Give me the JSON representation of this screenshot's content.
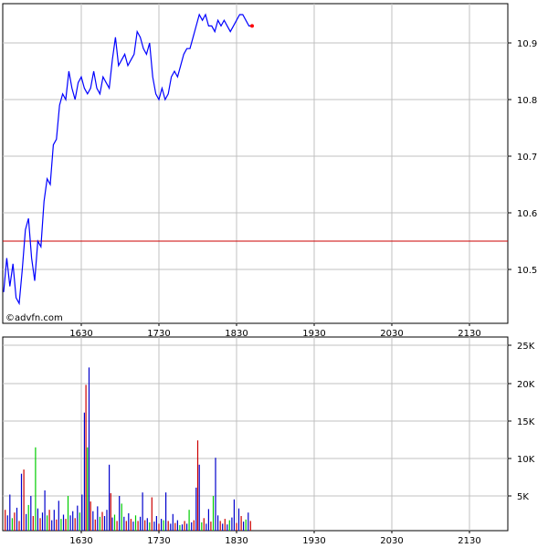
{
  "watermark": "©advfn.com",
  "colors": {
    "price_line": "#0000ff",
    "reference_line": "#cc0000",
    "last_point": "#ff0000",
    "grid": "#c0c0c0",
    "frame": "#000000",
    "vol_up": "#00cc00",
    "vol_down": "#cc0000",
    "vol_neutral": "#0000cc"
  },
  "chart_data": [
    {
      "type": "line",
      "name": "price",
      "x_ticks": [
        "1630",
        "1730",
        "1830",
        "1930",
        "2030",
        "2130"
      ],
      "y_ticks": [
        "10.5",
        "10.6",
        "10.7",
        "10.8",
        "10.9"
      ],
      "ylim": [
        10.41,
        10.98
      ],
      "xlim": [
        1530,
        2200
      ],
      "grid": true,
      "reference_line": 10.55,
      "last_point": {
        "x": 1850,
        "y": 10.93
      },
      "x": [
        1530,
        1534,
        1538,
        1542,
        1546,
        1550,
        1554,
        1558,
        1562,
        1566,
        1570,
        1574,
        1578,
        1582,
        1586,
        1590,
        1594,
        1598,
        1602,
        1606,
        1610,
        1614,
        1618,
        1622,
        1626,
        1630,
        1634,
        1638,
        1642,
        1646,
        1650,
        1654,
        1658,
        1662,
        1666,
        1670,
        1674,
        1678,
        1682,
        1686,
        1690,
        1694,
        1698,
        1702,
        1706,
        1710,
        1714,
        1718,
        1722,
        1726,
        1730,
        1734,
        1738,
        1742,
        1746,
        1750,
        1754,
        1758,
        1762,
        1766,
        1770,
        1774,
        1778,
        1782,
        1786,
        1790,
        1794,
        1798,
        1802,
        1806,
        1810,
        1814,
        1818,
        1822,
        1826,
        1830,
        1834,
        1838,
        1842,
        1846,
        1850
      ],
      "y": [
        10.46,
        10.52,
        10.47,
        10.51,
        10.45,
        10.44,
        10.5,
        10.57,
        10.59,
        10.52,
        10.48,
        10.55,
        10.54,
        10.62,
        10.66,
        10.65,
        10.72,
        10.73,
        10.79,
        10.81,
        10.8,
        10.85,
        10.82,
        10.8,
        10.83,
        10.84,
        10.82,
        10.81,
        10.82,
        10.85,
        10.82,
        10.81,
        10.84,
        10.83,
        10.82,
        10.87,
        10.91,
        10.86,
        10.87,
        10.88,
        10.86,
        10.87,
        10.88,
        10.92,
        10.91,
        10.89,
        10.88,
        10.9,
        10.84,
        10.81,
        10.8,
        10.82,
        10.8,
        10.81,
        10.84,
        10.85,
        10.84,
        10.86,
        10.88,
        10.89,
        10.89,
        10.91,
        10.93,
        10.95,
        10.94,
        10.95,
        10.93,
        10.93,
        10.92,
        10.94,
        10.93,
        10.94,
        10.93,
        10.92,
        10.93,
        10.94,
        10.95,
        10.95,
        10.94,
        10.93,
        10.93
      ]
    },
    {
      "type": "bar",
      "name": "volume",
      "x_ticks": [
        "1630",
        "1730",
        "1830",
        "1930",
        "2030",
        "2130"
      ],
      "y_ticks": [
        "5K",
        "10K",
        "15K",
        "20K",
        "25K"
      ],
      "ylim": [
        0,
        25000
      ],
      "xlim": [
        1530,
        2200
      ],
      "grid": true,
      "bars": [
        {
          "x": 1532,
          "v": 3000,
          "c": "d"
        },
        {
          "x": 1535,
          "v": 2200,
          "c": "n"
        },
        {
          "x": 1538,
          "v": 5200,
          "c": "n"
        },
        {
          "x": 1541,
          "v": 1800,
          "c": "u"
        },
        {
          "x": 1544,
          "v": 2600,
          "c": "d"
        },
        {
          "x": 1547,
          "v": 3300,
          "c": "n"
        },
        {
          "x": 1550,
          "v": 1400,
          "c": "d"
        },
        {
          "x": 1553,
          "v": 8200,
          "c": "n"
        },
        {
          "x": 1556,
          "v": 8800,
          "c": "d"
        },
        {
          "x": 1559,
          "v": 2400,
          "c": "n"
        },
        {
          "x": 1562,
          "v": 3700,
          "c": "u"
        },
        {
          "x": 1565,
          "v": 5000,
          "c": "n"
        },
        {
          "x": 1568,
          "v": 2100,
          "c": "d"
        },
        {
          "x": 1571,
          "v": 12000,
          "c": "u"
        },
        {
          "x": 1574,
          "v": 3200,
          "c": "n"
        },
        {
          "x": 1577,
          "v": 1800,
          "c": "d"
        },
        {
          "x": 1580,
          "v": 2600,
          "c": "n"
        },
        {
          "x": 1583,
          "v": 5800,
          "c": "n"
        },
        {
          "x": 1586,
          "v": 2200,
          "c": "u"
        },
        {
          "x": 1589,
          "v": 3000,
          "c": "d"
        },
        {
          "x": 1592,
          "v": 1500,
          "c": "n"
        },
        {
          "x": 1595,
          "v": 3000,
          "c": "n"
        },
        {
          "x": 1598,
          "v": 1600,
          "c": "d"
        },
        {
          "x": 1601,
          "v": 4300,
          "c": "n"
        },
        {
          "x": 1604,
          "v": 1700,
          "c": "u"
        },
        {
          "x": 1607,
          "v": 2300,
          "c": "n"
        },
        {
          "x": 1610,
          "v": 1700,
          "c": "d"
        },
        {
          "x": 1613,
          "v": 5000,
          "c": "u"
        },
        {
          "x": 1616,
          "v": 2200,
          "c": "n"
        },
        {
          "x": 1619,
          "v": 2800,
          "c": "n"
        },
        {
          "x": 1622,
          "v": 1800,
          "c": "d"
        },
        {
          "x": 1625,
          "v": 3600,
          "c": "n"
        },
        {
          "x": 1628,
          "v": 2600,
          "c": "u"
        },
        {
          "x": 1631,
          "v": 5200,
          "c": "n"
        },
        {
          "x": 1634,
          "v": 17000,
          "c": "n"
        },
        {
          "x": 1636,
          "v": 21000,
          "c": "d"
        },
        {
          "x": 1638,
          "v": 12000,
          "c": "u"
        },
        {
          "x": 1640,
          "v": 23500,
          "c": "n"
        },
        {
          "x": 1642,
          "v": 4200,
          "c": "d"
        },
        {
          "x": 1645,
          "v": 2800,
          "c": "n"
        },
        {
          "x": 1648,
          "v": 1600,
          "c": "d"
        },
        {
          "x": 1651,
          "v": 3500,
          "c": "n"
        },
        {
          "x": 1654,
          "v": 2000,
          "c": "u"
        },
        {
          "x": 1657,
          "v": 2700,
          "c": "d"
        },
        {
          "x": 1660,
          "v": 2100,
          "c": "n"
        },
        {
          "x": 1663,
          "v": 3000,
          "c": "n"
        },
        {
          "x": 1666,
          "v": 9500,
          "c": "n"
        },
        {
          "x": 1668,
          "v": 5400,
          "c": "d"
        },
        {
          "x": 1670,
          "v": 1900,
          "c": "n"
        },
        {
          "x": 1673,
          "v": 2300,
          "c": "u"
        },
        {
          "x": 1676,
          "v": 1400,
          "c": "d"
        },
        {
          "x": 1679,
          "v": 5000,
          "c": "n"
        },
        {
          "x": 1682,
          "v": 3900,
          "c": "u"
        },
        {
          "x": 1685,
          "v": 2000,
          "c": "n"
        },
        {
          "x": 1688,
          "v": 1400,
          "c": "d"
        },
        {
          "x": 1691,
          "v": 2500,
          "c": "n"
        },
        {
          "x": 1694,
          "v": 1700,
          "c": "d"
        },
        {
          "x": 1697,
          "v": 1300,
          "c": "n"
        },
        {
          "x": 1700,
          "v": 2200,
          "c": "u"
        },
        {
          "x": 1703,
          "v": 1400,
          "c": "d"
        },
        {
          "x": 1706,
          "v": 2000,
          "c": "n"
        },
        {
          "x": 1709,
          "v": 5500,
          "c": "n"
        },
        {
          "x": 1712,
          "v": 1500,
          "c": "d"
        },
        {
          "x": 1715,
          "v": 1800,
          "c": "n"
        },
        {
          "x": 1718,
          "v": 1200,
          "c": "u"
        },
        {
          "x": 1721,
          "v": 4800,
          "c": "d"
        },
        {
          "x": 1724,
          "v": 1300,
          "c": "n"
        },
        {
          "x": 1727,
          "v": 2100,
          "c": "n"
        },
        {
          "x": 1730,
          "v": 1000,
          "c": "d"
        },
        {
          "x": 1733,
          "v": 1700,
          "c": "n"
        },
        {
          "x": 1736,
          "v": 1500,
          "c": "u"
        },
        {
          "x": 1739,
          "v": 5500,
          "c": "n"
        },
        {
          "x": 1742,
          "v": 1400,
          "c": "d"
        },
        {
          "x": 1745,
          "v": 1000,
          "c": "n"
        },
        {
          "x": 1748,
          "v": 2400,
          "c": "n"
        },
        {
          "x": 1751,
          "v": 1100,
          "c": "d"
        },
        {
          "x": 1754,
          "v": 1500,
          "c": "n"
        },
        {
          "x": 1757,
          "v": 800,
          "c": "u"
        },
        {
          "x": 1760,
          "v": 900,
          "c": "n"
        },
        {
          "x": 1763,
          "v": 1400,
          "c": "d"
        },
        {
          "x": 1766,
          "v": 1000,
          "c": "n"
        },
        {
          "x": 1769,
          "v": 3000,
          "c": "u"
        },
        {
          "x": 1772,
          "v": 1200,
          "c": "n"
        },
        {
          "x": 1775,
          "v": 1500,
          "c": "d"
        },
        {
          "x": 1778,
          "v": 6200,
          "c": "n"
        },
        {
          "x": 1780,
          "v": 13000,
          "c": "d"
        },
        {
          "x": 1782,
          "v": 9500,
          "c": "n"
        },
        {
          "x": 1785,
          "v": 1200,
          "c": "u"
        },
        {
          "x": 1788,
          "v": 1800,
          "c": "d"
        },
        {
          "x": 1791,
          "v": 1000,
          "c": "n"
        },
        {
          "x": 1794,
          "v": 3100,
          "c": "n"
        },
        {
          "x": 1797,
          "v": 1300,
          "c": "d"
        },
        {
          "x": 1800,
          "v": 5000,
          "c": "u"
        },
        {
          "x": 1803,
          "v": 10500,
          "c": "n"
        },
        {
          "x": 1806,
          "v": 2200,
          "c": "n"
        },
        {
          "x": 1809,
          "v": 1400,
          "c": "d"
        },
        {
          "x": 1812,
          "v": 1000,
          "c": "n"
        },
        {
          "x": 1815,
          "v": 1700,
          "c": "d"
        },
        {
          "x": 1818,
          "v": 900,
          "c": "n"
        },
        {
          "x": 1821,
          "v": 1500,
          "c": "u"
        },
        {
          "x": 1824,
          "v": 1900,
          "c": "n"
        },
        {
          "x": 1827,
          "v": 4500,
          "c": "n"
        },
        {
          "x": 1830,
          "v": 1100,
          "c": "d"
        },
        {
          "x": 1833,
          "v": 3200,
          "c": "n"
        },
        {
          "x": 1836,
          "v": 2100,
          "c": "d"
        },
        {
          "x": 1839,
          "v": 1300,
          "c": "n"
        },
        {
          "x": 1842,
          "v": 1600,
          "c": "u"
        },
        {
          "x": 1845,
          "v": 2600,
          "c": "n"
        },
        {
          "x": 1848,
          "v": 1400,
          "c": "d"
        }
      ]
    }
  ]
}
